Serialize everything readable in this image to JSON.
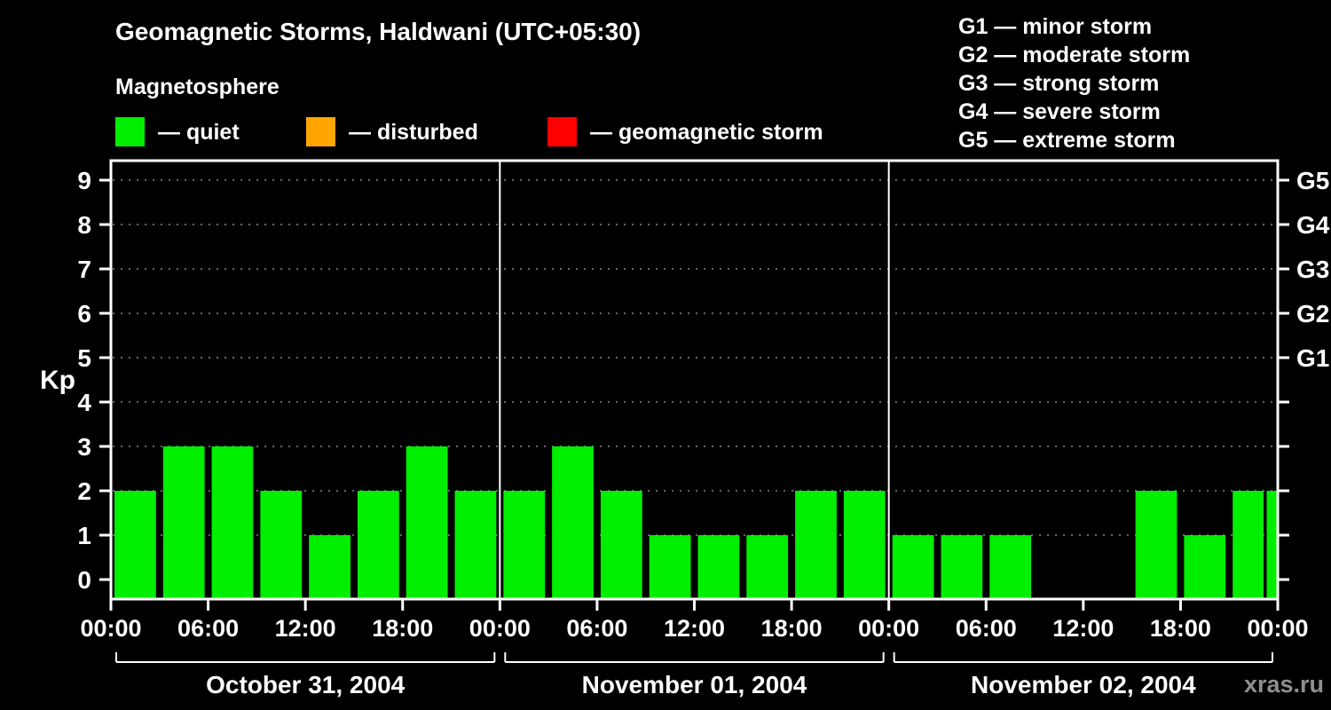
{
  "header": {
    "title": "Geomagnetic Storms, Haldwani (UTC+05:30)",
    "subtitle": "Magnetosphere",
    "legend_items": [
      {
        "name": "quiet",
        "label": "— quiet",
        "color": "#00ee00"
      },
      {
        "name": "disturbed",
        "label": "— disturbed",
        "color": "#ffa500"
      },
      {
        "name": "geomagnetic-storm",
        "label": "— geomagnetic storm",
        "color": "#ff0000"
      }
    ],
    "storm_scale": [
      "G1 — minor storm",
      "G2 — moderate storm",
      "G3 — strong storm",
      "G4 — severe storm",
      "G5 — extreme storm"
    ]
  },
  "watermark": "xras.ru",
  "chart_data": {
    "type": "bar",
    "title": "Geomagnetic Storms, Haldwani (UTC+05:30)",
    "ylabel": "Kp",
    "ylim": [
      0,
      9
    ],
    "yticks": [
      0,
      1,
      2,
      3,
      4,
      5,
      6,
      7,
      8,
      9
    ],
    "grid": true,
    "interval_hours": 3,
    "bar_color_quiet": "#00ee00",
    "right_axis_labels": [
      {
        "value": 5,
        "label": "G1"
      },
      {
        "value": 6,
        "label": "G2"
      },
      {
        "value": 7,
        "label": "G3"
      },
      {
        "value": 8,
        "label": "G4"
      },
      {
        "value": 9,
        "label": "G5"
      }
    ],
    "x_tick_hours": [
      0,
      6,
      12,
      18
    ],
    "x_tick_labels": [
      "00:00",
      "06:00",
      "12:00",
      "18:00"
    ],
    "x_axis_end_label": "00:00",
    "days": [
      {
        "date": "October 31, 2004",
        "kp": [
          2,
          3,
          3,
          2,
          1,
          2,
          3,
          2
        ]
      },
      {
        "date": "November 01, 2004",
        "kp": [
          2,
          3,
          2,
          1,
          1,
          1,
          2,
          2
        ]
      },
      {
        "date": "November 02, 2004",
        "kp": [
          1,
          1,
          1,
          0,
          0,
          2,
          1,
          2
        ]
      }
    ],
    "partial_next_value": 2
  }
}
